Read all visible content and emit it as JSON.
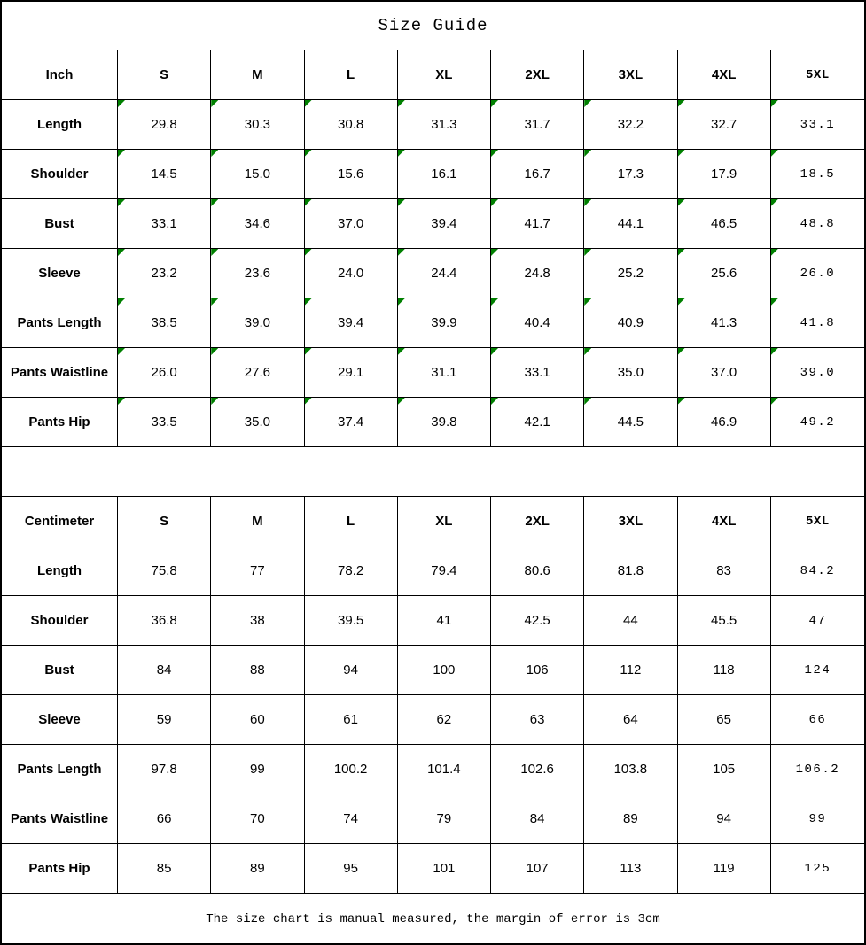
{
  "title": "Size Guide",
  "footer": "The size chart is manual measured, the margin of error is 3cm",
  "flag_color": "#008000",
  "tables": [
    {
      "unit_label": "Inch",
      "columns": [
        "S",
        "M",
        "L",
        "XL",
        "2XL",
        "3XL",
        "4XL",
        "5XL"
      ],
      "flags": true,
      "rows": [
        {
          "label": "Length",
          "values": [
            "29.8",
            "30.3",
            "30.8",
            "31.3",
            "31.7",
            "32.2",
            "32.7",
            "33.1"
          ]
        },
        {
          "label": "Shoulder",
          "values": [
            "14.5",
            "15.0",
            "15.6",
            "16.1",
            "16.7",
            "17.3",
            "17.9",
            "18.5"
          ]
        },
        {
          "label": "Bust",
          "values": [
            "33.1",
            "34.6",
            "37.0",
            "39.4",
            "41.7",
            "44.1",
            "46.5",
            "48.8"
          ]
        },
        {
          "label": "Sleeve",
          "values": [
            "23.2",
            "23.6",
            "24.0",
            "24.4",
            "24.8",
            "25.2",
            "25.6",
            "26.0"
          ]
        },
        {
          "label": "Pants Length",
          "values": [
            "38.5",
            "39.0",
            "39.4",
            "39.9",
            "40.4",
            "40.9",
            "41.3",
            "41.8"
          ]
        },
        {
          "label": "Pants Waistline",
          "values": [
            "26.0",
            "27.6",
            "29.1",
            "31.1",
            "33.1",
            "35.0",
            "37.0",
            "39.0"
          ]
        },
        {
          "label": "Pants Hip",
          "values": [
            "33.5",
            "35.0",
            "37.4",
            "39.8",
            "42.1",
            "44.5",
            "46.9",
            "49.2"
          ]
        }
      ]
    },
    {
      "unit_label": "Centimeter",
      "columns": [
        "S",
        "M",
        "L",
        "XL",
        "2XL",
        "3XL",
        "4XL",
        "5XL"
      ],
      "flags": false,
      "rows": [
        {
          "label": "Length",
          "values": [
            "75.8",
            "77",
            "78.2",
            "79.4",
            "80.6",
            "81.8",
            "83",
            "84.2"
          ]
        },
        {
          "label": "Shoulder",
          "values": [
            "36.8",
            "38",
            "39.5",
            "41",
            "42.5",
            "44",
            "45.5",
            "47"
          ]
        },
        {
          "label": "Bust",
          "values": [
            "84",
            "88",
            "94",
            "100",
            "106",
            "112",
            "118",
            "124"
          ]
        },
        {
          "label": "Sleeve",
          "values": [
            "59",
            "60",
            "61",
            "62",
            "63",
            "64",
            "65",
            "66"
          ]
        },
        {
          "label": "Pants Length",
          "values": [
            "97.8",
            "99",
            "100.2",
            "101.4",
            "102.6",
            "103.8",
            "105",
            "106.2"
          ]
        },
        {
          "label": "Pants Waistline",
          "values": [
            "66",
            "70",
            "74",
            "79",
            "84",
            "89",
            "94",
            "99"
          ]
        },
        {
          "label": "Pants Hip",
          "values": [
            "85",
            "89",
            "95",
            "101",
            "107",
            "113",
            "119",
            "125"
          ]
        }
      ]
    }
  ]
}
